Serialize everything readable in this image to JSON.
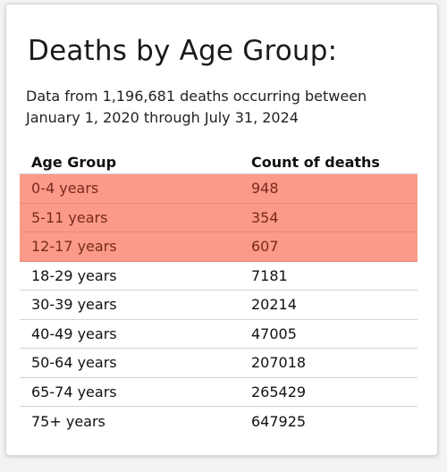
{
  "title": "Deaths by Age Group:",
  "subtitle": "Data from 1,196,681 deaths occurring between January 1, 2020 through July 31, 2024",
  "table": {
    "headers": [
      "Age Group",
      "Count of deaths"
    ],
    "rows": [
      {
        "age": "0-4 years",
        "count": "948",
        "highlighted": true
      },
      {
        "age": "5-11 years",
        "count": "354",
        "highlighted": true
      },
      {
        "age": "12-17 years",
        "count": "607",
        "highlighted": true
      },
      {
        "age": "18-29 years",
        "count": "7181",
        "highlighted": false
      },
      {
        "age": "30-39 years",
        "count": "20214",
        "highlighted": false
      },
      {
        "age": "40-49 years",
        "count": "47005",
        "highlighted": false
      },
      {
        "age": "50-64 years",
        "count": "207018",
        "highlighted": false
      },
      {
        "age": "65-74 years",
        "count": "265429",
        "highlighted": false
      },
      {
        "age": "75+ years",
        "count": "647925",
        "highlighted": false
      }
    ]
  },
  "colors": {
    "highlight": "#fb9a88",
    "highlight_text": "#7a2a1e"
  }
}
